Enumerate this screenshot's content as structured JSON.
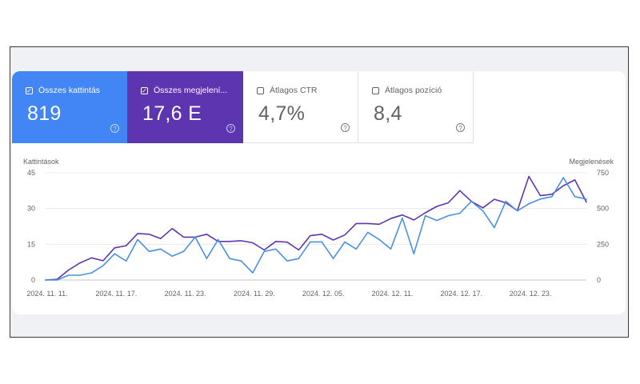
{
  "metrics": [
    {
      "label": "Összes kattintás",
      "value": "819",
      "checked": true,
      "color": "#4285f4"
    },
    {
      "label": "Összes megjelení...",
      "value": "17,6 E",
      "checked": true,
      "color": "#5e35b1"
    },
    {
      "label": "Átlagos CTR",
      "value": "4,7%",
      "checked": false,
      "color": "#ffffff"
    },
    {
      "label": "Átlagos pozíció",
      "value": "8,4",
      "checked": false,
      "color": "#ffffff"
    }
  ],
  "help_glyph": "?",
  "check_glyph": "✓",
  "chart_data": {
    "type": "line",
    "left_axis_label": "Kattintások",
    "right_axis_label": "Megjelenések",
    "left_ticks": [
      "45",
      "30",
      "15",
      "0"
    ],
    "right_ticks": [
      "750",
      "500",
      "250",
      "0"
    ],
    "left_ylim": [
      0,
      45
    ],
    "right_ylim": [
      0,
      750
    ],
    "x_tick_labels": [
      "2024. 11. 11.",
      "2024. 11. 17.",
      "2024. 11. 23.",
      "2024. 11. 29.",
      "2024. 12. 05.",
      "2024. 12. 11.",
      "2024. 12. 17.",
      "2024. 12. 23."
    ],
    "grid": true,
    "series": [
      {
        "name": "Kattintások",
        "axis": "left",
        "color": "#4a90e2",
        "values": [
          0,
          0,
          2,
          2,
          3,
          6,
          11,
          8,
          17,
          12,
          13,
          10,
          12,
          18,
          9,
          17,
          9,
          8,
          3,
          12,
          13,
          8,
          9,
          16,
          16,
          9,
          16,
          13,
          20,
          17,
          13,
          26,
          11,
          27,
          25,
          27,
          28,
          33,
          29,
          22,
          33,
          29,
          32,
          34,
          35,
          43,
          35,
          34
        ]
      },
      {
        "name": "Megjelenések",
        "axis": "right",
        "color": "#5e35b1",
        "values": [
          0,
          5,
          70,
          120,
          155,
          135,
          225,
          240,
          325,
          320,
          290,
          360,
          300,
          300,
          320,
          270,
          270,
          275,
          260,
          210,
          270,
          265,
          210,
          310,
          320,
          280,
          315,
          395,
          395,
          390,
          430,
          455,
          420,
          470,
          515,
          540,
          625,
          550,
          505,
          565,
          540,
          485,
          725,
          590,
          600,
          660,
          700,
          545
        ]
      }
    ]
  }
}
